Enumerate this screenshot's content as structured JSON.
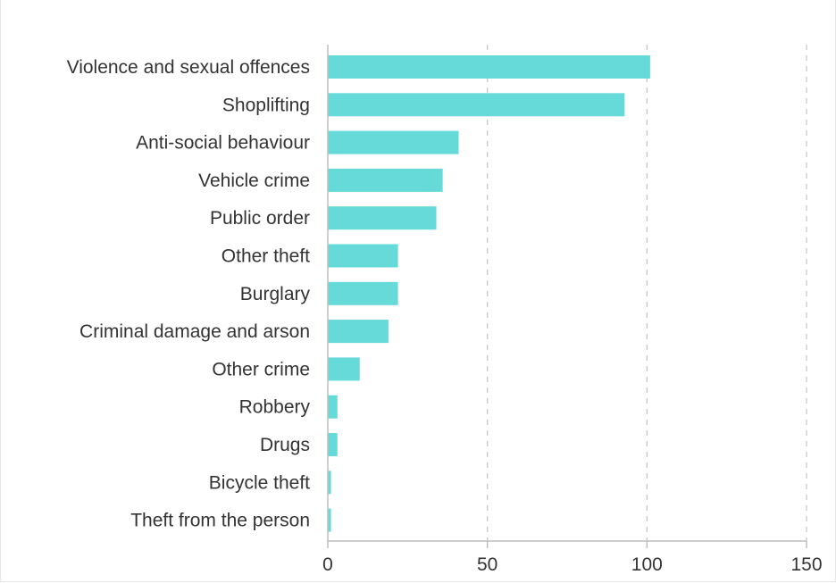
{
  "chart_data": {
    "type": "bar",
    "orientation": "horizontal",
    "categories": [
      "Violence and sexual offences",
      "Shoplifting",
      "Anti-social behaviour",
      "Vehicle crime",
      "Public order",
      "Other theft",
      "Burglary",
      "Criminal damage and arson",
      "Other crime",
      "Robbery",
      "Drugs",
      "Bicycle theft",
      "Theft from the person"
    ],
    "values": [
      101,
      93,
      41,
      36,
      34,
      22,
      22,
      19,
      10,
      3,
      3,
      1,
      1
    ],
    "xlim": [
      0,
      150
    ],
    "xticks": [
      0,
      50,
      100,
      150
    ],
    "grid": "vertical dashed",
    "bar_color": "#66d9d9",
    "title": "",
    "xlabel": "",
    "ylabel": ""
  }
}
